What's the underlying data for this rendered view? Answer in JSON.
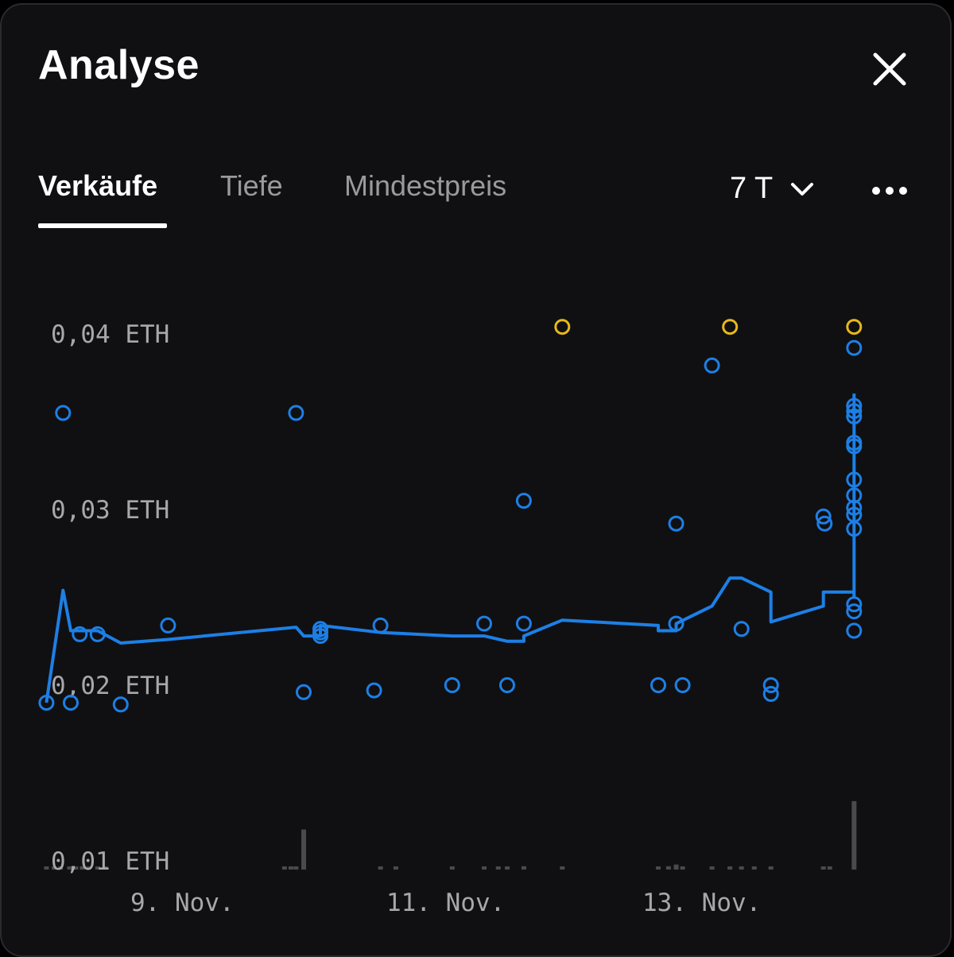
{
  "header": {
    "title": "Analyse"
  },
  "tabs": [
    {
      "label": "Verkäufe",
      "active": true
    },
    {
      "label": "Tiefe",
      "active": false
    },
    {
      "label": "Mindestpreis",
      "active": false
    }
  ],
  "period": {
    "label": "7 T"
  },
  "icons": {
    "close": "close-icon",
    "period": "chevron-down-icon",
    "more": "more-horizontal-icon"
  },
  "colors": {
    "accent": "#1d7fe6",
    "highlight": "#e8b81c",
    "volume": "#4a4a4e"
  },
  "chart_data": {
    "type": "scatter",
    "title": "",
    "xlabel": "",
    "ylabel": "",
    "ylim": [
      0.01,
      0.0435
    ],
    "xlim": [
      8.2,
      14.6
    ],
    "y_ticks": [
      {
        "value": 0.04,
        "label": "0,04 ETH"
      },
      {
        "value": 0.03,
        "label": "0,03 ETH"
      },
      {
        "value": 0.02,
        "label": "0,02 ETH"
      },
      {
        "value": 0.01,
        "label": "0,01 ETH"
      }
    ],
    "x_ticks": [
      {
        "value": 9,
        "label": "9. Nov."
      },
      {
        "value": 11,
        "label": "11. Nov."
      },
      {
        "value": 13,
        "label": "13. Nov."
      }
    ],
    "series": [
      {
        "kind": "sales",
        "color": "#1d7fe6",
        "points": [
          [
            8.22,
            0.019
          ],
          [
            8.35,
            0.0355
          ],
          [
            8.41,
            0.019
          ],
          [
            8.48,
            0.0229
          ],
          [
            8.62,
            0.0229
          ],
          [
            8.8,
            0.0189
          ],
          [
            9.17,
            0.0234
          ],
          [
            10.17,
            0.0355
          ],
          [
            10.23,
            0.0196
          ],
          [
            10.36,
            0.0232
          ],
          [
            10.36,
            0.0228
          ],
          [
            10.36,
            0.023
          ],
          [
            10.78,
            0.0197
          ],
          [
            10.83,
            0.0234
          ],
          [
            11.39,
            0.02
          ],
          [
            11.64,
            0.0235
          ],
          [
            11.82,
            0.02
          ],
          [
            11.95,
            0.0305
          ],
          [
            11.95,
            0.0235
          ],
          [
            13.0,
            0.02
          ],
          [
            13.14,
            0.0292
          ],
          [
            13.14,
            0.0235
          ],
          [
            13.19,
            0.02
          ],
          [
            13.42,
            0.0382
          ],
          [
            13.65,
            0.0232
          ],
          [
            13.88,
            0.02
          ],
          [
            13.88,
            0.0195
          ],
          [
            14.29,
            0.0296
          ],
          [
            14.3,
            0.0292
          ],
          [
            14.53,
            0.0392
          ],
          [
            14.53,
            0.0359
          ],
          [
            14.53,
            0.0356
          ],
          [
            14.53,
            0.0353
          ],
          [
            14.53,
            0.0338
          ],
          [
            14.53,
            0.0336
          ],
          [
            14.53,
            0.0317
          ],
          [
            14.53,
            0.0308
          ],
          [
            14.53,
            0.0301
          ],
          [
            14.53,
            0.0297
          ],
          [
            14.53,
            0.0289
          ],
          [
            14.53,
            0.0246
          ],
          [
            14.53,
            0.0242
          ],
          [
            14.53,
            0.0231
          ]
        ]
      },
      {
        "kind": "listings",
        "color": "#e8b81c",
        "points": [
          [
            12.25,
            0.0404
          ],
          [
            13.56,
            0.0404
          ],
          [
            14.53,
            0.0404
          ]
        ]
      }
    ],
    "average_line": {
      "color": "#1d7fe6",
      "points": [
        [
          8.22,
          0.019
        ],
        [
          8.35,
          0.0254
        ],
        [
          8.41,
          0.0231
        ],
        [
          8.62,
          0.0231
        ],
        [
          8.8,
          0.0224
        ],
        [
          9.17,
          0.0226
        ],
        [
          10.17,
          0.0233
        ],
        [
          10.23,
          0.0228
        ],
        [
          10.36,
          0.0228
        ],
        [
          10.36,
          0.0234
        ],
        [
          10.83,
          0.023
        ],
        [
          11.39,
          0.0228
        ],
        [
          11.64,
          0.0228
        ],
        [
          11.82,
          0.0225
        ],
        [
          11.95,
          0.0225
        ],
        [
          11.95,
          0.0228
        ],
        [
          12.25,
          0.0237
        ],
        [
          13.0,
          0.0234
        ],
        [
          13.0,
          0.0231
        ],
        [
          13.14,
          0.0231
        ],
        [
          13.14,
          0.0235
        ],
        [
          13.42,
          0.0245
        ],
        [
          13.56,
          0.0261
        ],
        [
          13.65,
          0.0261
        ],
        [
          13.88,
          0.0253
        ],
        [
          13.88,
          0.0236
        ],
        [
          14.29,
          0.0245
        ],
        [
          14.29,
          0.0253
        ],
        [
          14.53,
          0.0253
        ],
        [
          14.53,
          0.025
        ],
        [
          14.53,
          0.0366
        ]
      ]
    },
    "volume_bars": [
      [
        8.22,
        1
      ],
      [
        8.28,
        1
      ],
      [
        8.33,
        1
      ],
      [
        8.4,
        1
      ],
      [
        8.45,
        1
      ],
      [
        8.5,
        1
      ],
      [
        8.55,
        1
      ],
      [
        8.62,
        1
      ],
      [
        8.68,
        1
      ],
      [
        10.08,
        2
      ],
      [
        10.13,
        2
      ],
      [
        10.17,
        3
      ],
      [
        10.23,
        48
      ],
      [
        10.83,
        2
      ],
      [
        10.95,
        2
      ],
      [
        11.39,
        2
      ],
      [
        11.64,
        2
      ],
      [
        11.75,
        2
      ],
      [
        11.82,
        2
      ],
      [
        11.95,
        4
      ],
      [
        12.25,
        3
      ],
      [
        13.0,
        2
      ],
      [
        13.08,
        4
      ],
      [
        13.14,
        6
      ],
      [
        13.19,
        3
      ],
      [
        13.42,
        3
      ],
      [
        13.56,
        2
      ],
      [
        13.65,
        3
      ],
      [
        13.75,
        3
      ],
      [
        13.88,
        3
      ],
      [
        14.29,
        2
      ],
      [
        14.34,
        2
      ],
      [
        14.53,
        82
      ]
    ]
  }
}
